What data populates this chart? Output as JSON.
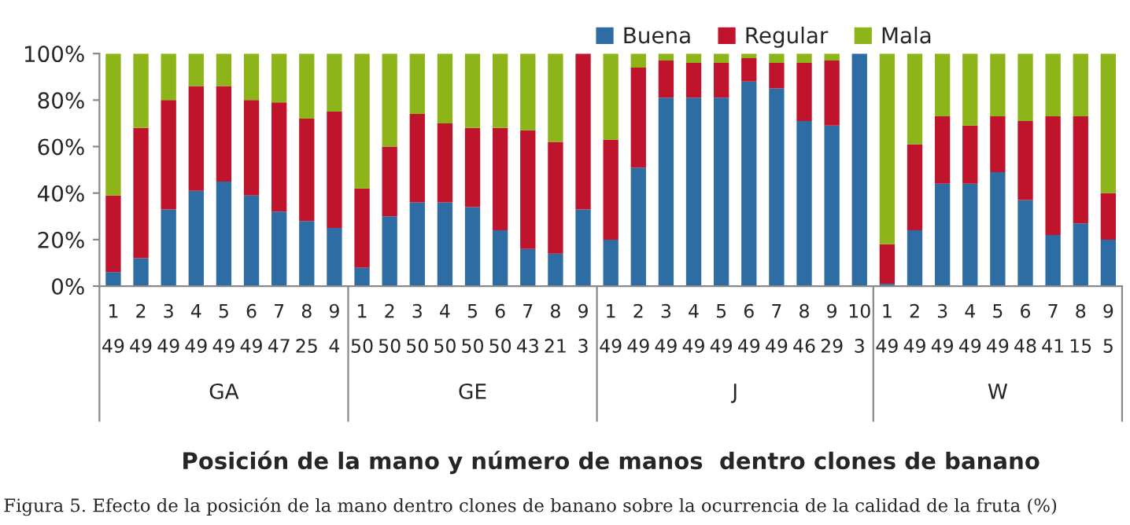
{
  "chart_data": {
    "type": "bar",
    "stacked": true,
    "categories": [
      "1\n49",
      "2\n49",
      "3\n49",
      "4\n49",
      "5\n49",
      "6\n49",
      "7\n47",
      "8\n25",
      "9\n4",
      "1\n50",
      "2\n50",
      "3\n50",
      "4\n50",
      "5\n50",
      "6\n50",
      "7\n43",
      "8\n21",
      "9\n3",
      "1\n49",
      "2\n49",
      "3\n49",
      "4\n49",
      "5\n49",
      "6\n49",
      "7\n49",
      "8\n46",
      "9\n29",
      "10\n3",
      "1\n49",
      "2\n49",
      "3\n49",
      "4\n49",
      "5\n49",
      "6\n48",
      "7\n41",
      "8\n15",
      "9\n5"
    ],
    "series": [
      {
        "name": "Buena",
        "color": "#2e6ca4",
        "values": [
          6,
          12,
          33,
          41,
          45,
          39,
          32,
          28,
          25,
          8,
          30,
          36,
          36,
          34,
          24,
          16,
          14,
          33,
          20,
          51,
          81,
          81,
          81,
          88,
          85,
          71,
          69,
          100,
          1,
          24,
          44,
          44,
          49,
          37,
          22,
          27,
          20
        ]
      },
      {
        "name": "Regular",
        "color": "#c0142c",
        "values": [
          33,
          56,
          47,
          45,
          41,
          41,
          47,
          44,
          50,
          34,
          30,
          38,
          34,
          34,
          44,
          51,
          48,
          67,
          43,
          43,
          16,
          15,
          15,
          10,
          11,
          25,
          28,
          0,
          17,
          37,
          29,
          25,
          24,
          34,
          51,
          46,
          20
        ]
      },
      {
        "name": "Mala",
        "color": "#8db51a",
        "values": [
          61,
          32,
          20,
          14,
          14,
          20,
          21,
          28,
          25,
          58,
          40,
          26,
          30,
          32,
          32,
          33,
          38,
          0,
          37,
          6,
          3,
          4,
          4,
          2,
          4,
          4,
          3,
          0,
          82,
          39,
          27,
          31,
          27,
          29,
          27,
          27,
          60
        ]
      }
    ],
    "ylim": [
      0,
      100
    ],
    "yticks": [
      {
        "value": 0,
        "label": "0%"
      },
      {
        "value": 20,
        "label": "20%"
      },
      {
        "value": 40,
        "label": "40%"
      },
      {
        "value": 60,
        "label": "60%"
      },
      {
        "value": 80,
        "label": "80%"
      },
      {
        "value": 100,
        "label": "100%"
      }
    ],
    "xlabel": "Posición de la mano y número de manos  dentro clones de banano",
    "annotations": [
      "GA",
      "GE",
      "J",
      "W",
      "Figura 5. Efecto de la posición de la mano dentro clones de banano sobre la ocurrencia de la calidad de la fruta (%)"
    ],
    "legend": "top",
    "grid": false
  }
}
